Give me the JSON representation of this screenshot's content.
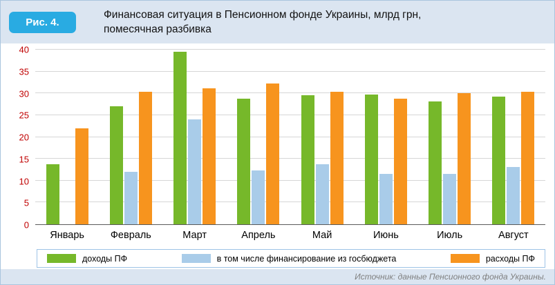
{
  "figure_label": "Рис. 4.",
  "title": {
    "line1": "Финансовая ситуация в Пенсионном фонде Украины, млрд грн,",
    "line2": "помесячная разбивка"
  },
  "source": "Источник: данные Пенсионного фонда Украины.",
  "colors": {
    "badge": "#29ABE2",
    "revenues": "#76B82A",
    "budget": "#A9CCE9",
    "expenditures": "#F7941E",
    "y_tick": "#C00000",
    "gridline": "#D6D6D6",
    "band_background": "#DBE5F1",
    "box_border": "#9DC3E6"
  },
  "chart_data": {
    "type": "bar",
    "title": "Финансовая ситуация в Пенсионном фонде Украины, млрд грн, помесячная разбивка",
    "categories": [
      "Январь",
      "Февраль",
      "Март",
      "Апрель",
      "Май",
      "Июнь",
      "Июль",
      "Август"
    ],
    "series": [
      {
        "name": "доходы ПФ",
        "color_key": "revenues",
        "values": [
          13.8,
          27.0,
          39.5,
          28.7,
          29.6,
          29.8,
          28.1,
          29.2
        ]
      },
      {
        "name": "в том числе финансирование из госбюджета",
        "color_key": "budget",
        "values": [
          0,
          12.0,
          24.0,
          12.4,
          13.8,
          11.5,
          11.5,
          13.2
        ]
      },
      {
        "name": "расходы ПФ",
        "color_key": "expenditures",
        "values": [
          22.0,
          30.4,
          31.1,
          32.3,
          30.3,
          28.7,
          30.1,
          30.4
        ]
      }
    ],
    "xlabel": "",
    "ylabel": "",
    "ylim": [
      0,
      40
    ],
    "ytick_step": 5,
    "grid": true,
    "legend_position": "bottom"
  }
}
